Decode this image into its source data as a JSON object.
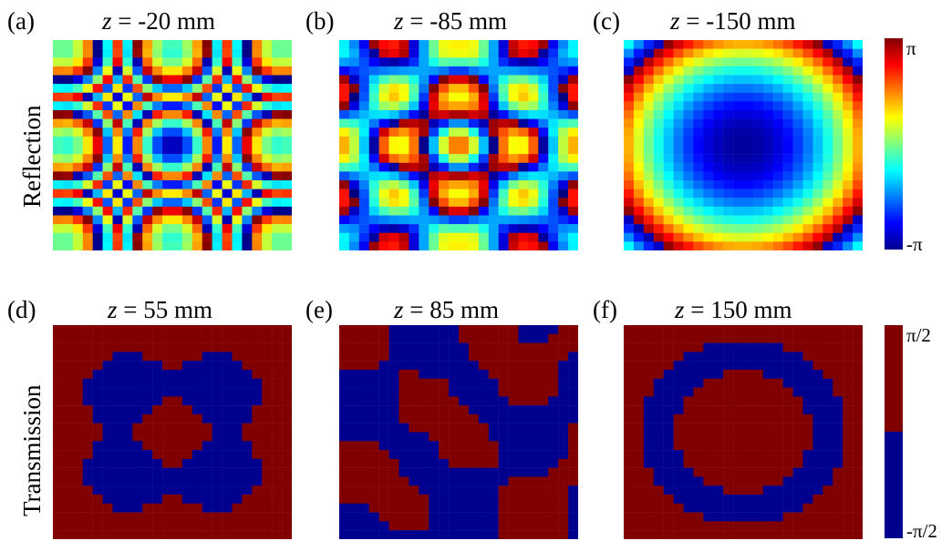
{
  "rows": {
    "reflection": "Reflection",
    "transmission": "Transmission"
  },
  "colorbars": {
    "reflection": {
      "top": "π",
      "bottom": "-π"
    },
    "transmission": {
      "top": "π/2",
      "bottom": "-π/2"
    }
  },
  "colors": {
    "jet_low": "#00008f",
    "jet_high": "#800000",
    "binary_low": "#00008f",
    "binary_high": "#800000"
  },
  "chart_data": [
    {
      "panel": "(a)",
      "z_label": "z",
      "title_value": " = -20 mm",
      "type": "heatmap",
      "row": "Reflection",
      "grid": 24,
      "z_mm": -20,
      "pattern": "rings",
      "colormap": "jet",
      "range": [
        "-π",
        "π"
      ]
    },
    {
      "panel": "(b)",
      "z_label": "z",
      "title_value": " = -85 mm",
      "type": "heatmap",
      "row": "Reflection",
      "grid": 24,
      "z_mm": -85,
      "pattern": "lattice",
      "colormap": "jet",
      "range": [
        "-π",
        "π"
      ]
    },
    {
      "panel": "(c)",
      "z_label": "z",
      "title_value": " = -150 mm",
      "type": "heatmap",
      "row": "Reflection",
      "grid": 24,
      "z_mm": -150,
      "pattern": "single-ring",
      "colormap": "jet",
      "range": [
        "-π",
        "π"
      ]
    },
    {
      "panel": "(d)",
      "z_label": "z",
      "title_value": " = 55 mm",
      "type": "heatmap",
      "row": "Transmission",
      "grid": 24,
      "z_mm": 55,
      "pattern": "cross",
      "colormap": "binary",
      "levels": [
        "-π/2",
        "π/2"
      ]
    },
    {
      "panel": "(e)",
      "z_label": "z",
      "title_value": " = 85 mm",
      "type": "heatmap",
      "row": "Transmission",
      "grid": 24,
      "z_mm": 85,
      "pattern": "irregular",
      "colormap": "binary",
      "levels": [
        "-π/2",
        "π/2"
      ]
    },
    {
      "panel": "(f)",
      "z_label": "z",
      "title_value": " = 150 mm",
      "type": "heatmap",
      "row": "Transmission",
      "grid": 24,
      "z_mm": 150,
      "pattern": "ring",
      "colormap": "binary",
      "levels": [
        "-π/2",
        "π/2"
      ]
    }
  ]
}
